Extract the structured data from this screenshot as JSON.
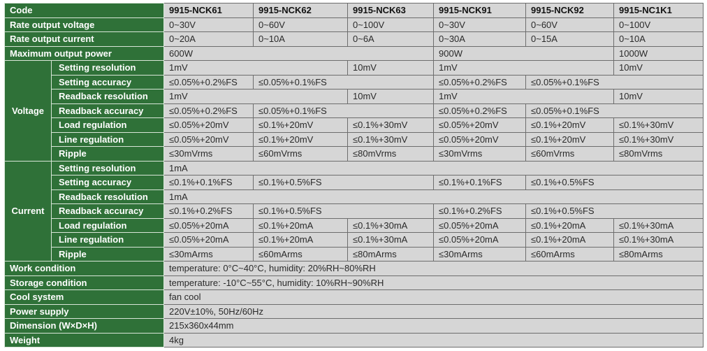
{
  "colors": {
    "label_bg": "#2f7138",
    "label_text": "#ffffff",
    "cell_bg": "#d6d6d6"
  },
  "rows": [
    {
      "label": "Code",
      "cells": [
        {
          "text": "9915-NCK61",
          "span": 1
        },
        {
          "text": "9915-NCK62",
          "span": 1
        },
        {
          "text": "9915-NCK63",
          "span": 1
        },
        {
          "text": "9915-NCK91",
          "span": 1
        },
        {
          "text": "9915-NCK92",
          "span": 1
        },
        {
          "text": "9915-NC1K1",
          "span": 1
        }
      ]
    },
    {
      "label": "Rate output voltage",
      "cells": [
        {
          "text": "0~30V",
          "span": 1
        },
        {
          "text": "0~60V",
          "span": 1
        },
        {
          "text": "0~100V",
          "span": 1
        },
        {
          "text": "0~30V",
          "span": 1
        },
        {
          "text": "0~60V",
          "span": 1
        },
        {
          "text": "0~100V",
          "span": 1
        }
      ]
    },
    {
      "label": "Rate output current",
      "cells": [
        {
          "text": "0~20A",
          "span": 1
        },
        {
          "text": "0~10A",
          "span": 1
        },
        {
          "text": "0~6A",
          "span": 1
        },
        {
          "text": "0~30A",
          "span": 1
        },
        {
          "text": "0~15A",
          "span": 1
        },
        {
          "text": "0~10A",
          "span": 1
        }
      ]
    },
    {
      "label": "Maximum output power",
      "cells": [
        {
          "text": "600W",
          "span": 3
        },
        {
          "text": "900W",
          "span": 2
        },
        {
          "text": "1000W",
          "span": 1
        }
      ]
    },
    {
      "group": "Voltage",
      "group_rows": 7,
      "label": "Setting resolution",
      "cells": [
        {
          "text": "1mV",
          "span": 2
        },
        {
          "text": "10mV",
          "span": 1
        },
        {
          "text": "1mV",
          "span": 2
        },
        {
          "text": "10mV",
          "span": 1
        }
      ]
    },
    {
      "label": "Setting accuracy",
      "sub": true,
      "cells": [
        {
          "text": "≤0.05%+0.2%FS",
          "span": 1
        },
        {
          "text": "≤0.05%+0.1%FS",
          "span": 2
        },
        {
          "text": "≤0.05%+0.2%FS",
          "span": 1
        },
        {
          "text": "≤0.05%+0.1%FS",
          "span": 2
        }
      ]
    },
    {
      "label": "Readback resolution",
      "sub": true,
      "cells": [
        {
          "text": "1mV",
          "span": 2
        },
        {
          "text": "10mV",
          "span": 1
        },
        {
          "text": "1mV",
          "span": 2
        },
        {
          "text": "10mV",
          "span": 1
        }
      ]
    },
    {
      "label": "Readback accuracy",
      "sub": true,
      "cells": [
        {
          "text": "≤0.05%+0.2%FS",
          "span": 1
        },
        {
          "text": "≤0.05%+0.1%FS",
          "span": 2
        },
        {
          "text": "≤0.05%+0.2%FS",
          "span": 1
        },
        {
          "text": "≤0.05%+0.1%FS",
          "span": 2
        }
      ]
    },
    {
      "label": "Load regulation",
      "sub": true,
      "cells": [
        {
          "text": "≤0.05%+20mV",
          "span": 1
        },
        {
          "text": "≤0.1%+20mV",
          "span": 1
        },
        {
          "text": "≤0.1%+30mV",
          "span": 1
        },
        {
          "text": "≤0.05%+20mV",
          "span": 1
        },
        {
          "text": "≤0.1%+20mV",
          "span": 1
        },
        {
          "text": "≤0.1%+30mV",
          "span": 1
        }
      ]
    },
    {
      "label": "Line regulation",
      "sub": true,
      "cells": [
        {
          "text": "≤0.05%+20mV",
          "span": 1
        },
        {
          "text": "≤0.1%+20mV",
          "span": 1
        },
        {
          "text": "≤0.1%+30mV",
          "span": 1
        },
        {
          "text": "≤0.05%+20mV",
          "span": 1
        },
        {
          "text": "≤0.1%+20mV",
          "span": 1
        },
        {
          "text": "≤0.1%+30mV",
          "span": 1
        }
      ]
    },
    {
      "label": "Ripple",
      "sub": true,
      "cells": [
        {
          "text": "≤30mVrms",
          "span": 1
        },
        {
          "text": "≤60mVrms",
          "span": 1
        },
        {
          "text": "≤80mVrms",
          "span": 1
        },
        {
          "text": "≤30mVrms",
          "span": 1
        },
        {
          "text": "≤60mVrms",
          "span": 1
        },
        {
          "text": "≤80mVrms",
          "span": 1
        }
      ]
    },
    {
      "group": "Current",
      "group_rows": 7,
      "label": "Setting resolution",
      "cells": [
        {
          "text": "1mA",
          "span": 6
        }
      ]
    },
    {
      "label": "Setting accuracy",
      "sub": true,
      "cells": [
        {
          "text": "≤0.1%+0.1%FS",
          "span": 1
        },
        {
          "text": "≤0.1%+0.5%FS",
          "span": 2
        },
        {
          "text": "≤0.1%+0.1%FS",
          "span": 1
        },
        {
          "text": "≤0.1%+0.5%FS",
          "span": 2
        }
      ]
    },
    {
      "label": "Readback resolution",
      "sub": true,
      "cells": [
        {
          "text": "1mA",
          "span": 6
        }
      ]
    },
    {
      "label": "Readback accuracy",
      "sub": true,
      "cells": [
        {
          "text": "≤0.1%+0.2%FS",
          "span": 1
        },
        {
          "text": "≤0.1%+0.5%FS",
          "span": 2
        },
        {
          "text": "≤0.1%+0.2%FS",
          "span": 1
        },
        {
          "text": "≤0.1%+0.5%FS",
          "span": 2
        }
      ]
    },
    {
      "label": "Load regulation",
      "sub": true,
      "cells": [
        {
          "text": "≤0.05%+20mA",
          "span": 1
        },
        {
          "text": "≤0.1%+20mA",
          "span": 1
        },
        {
          "text": "≤0.1%+30mA",
          "span": 1
        },
        {
          "text": "≤0.05%+20mA",
          "span": 1
        },
        {
          "text": "≤0.1%+20mA",
          "span": 1
        },
        {
          "text": "≤0.1%+30mA",
          "span": 1
        }
      ]
    },
    {
      "label": "Line regulation",
      "sub": true,
      "cells": [
        {
          "text": "≤0.05%+20mA",
          "span": 1
        },
        {
          "text": "≤0.1%+20mA",
          "span": 1
        },
        {
          "text": "≤0.1%+30mA",
          "span": 1
        },
        {
          "text": "≤0.05%+20mA",
          "span": 1
        },
        {
          "text": "≤0.1%+20mA",
          "span": 1
        },
        {
          "text": "≤0.1%+30mA",
          "span": 1
        }
      ]
    },
    {
      "label": "Ripple",
      "sub": true,
      "cells": [
        {
          "text": "≤30mArms",
          "span": 1
        },
        {
          "text": "≤60mArms",
          "span": 1
        },
        {
          "text": "≤80mArms",
          "span": 1
        },
        {
          "text": "≤30mArms",
          "span": 1
        },
        {
          "text": "≤60mArms",
          "span": 1
        },
        {
          "text": "≤80mArms",
          "span": 1
        }
      ]
    },
    {
      "label": "Work condition",
      "cells": [
        {
          "text": "temperature: 0°C~40°C, humidity: 20%RH~80%RH",
          "span": 6
        }
      ]
    },
    {
      "label": "Storage condition",
      "cells": [
        {
          "text": "temperature: -10°C~55°C, humidity: 10%RH~90%RH",
          "span": 6
        }
      ]
    },
    {
      "label": "Cool system",
      "cells": [
        {
          "text": "fan cool",
          "span": 6
        }
      ]
    },
    {
      "label": "Power supply",
      "cells": [
        {
          "text": "220V±10%, 50Hz/60Hz",
          "span": 6
        }
      ]
    },
    {
      "label": "Dimension (W×D×H)",
      "cells": [
        {
          "text": "215x360x44mm",
          "span": 6
        }
      ]
    },
    {
      "label": "Weight",
      "cells": [
        {
          "text": "4kg",
          "span": 6
        }
      ]
    }
  ]
}
